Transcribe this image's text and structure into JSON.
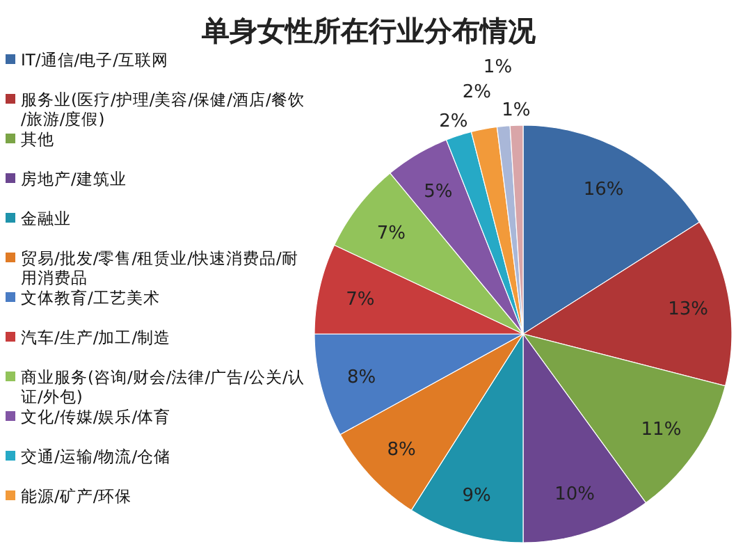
{
  "chart_data": {
    "type": "pie",
    "title": "单身女性所在行业分布情况",
    "categories": [
      "IT/通信/电子/互联网",
      "服务业(医疗/护理/美容/保健/酒店/餐饮/旅游/度假)",
      "其他",
      "房地产/建筑业",
      "金融业",
      "贸易/批发/零售/租赁业/快速消费品/耐用消费品",
      "文体教育/工艺美术",
      "汽车/生产/加工/制造",
      "商业服务(咨询/财会/法律/广告/公关/认证/外包)",
      "文化/传媒/娱乐/体育",
      "交通/运输/物流/仓储",
      "能源/矿产/环保",
      null,
      null
    ],
    "values": [
      16,
      13,
      11,
      10,
      9,
      8,
      8,
      7,
      7,
      5,
      2,
      2,
      1,
      1
    ],
    "colors": [
      "#3b6aa4",
      "#b03636",
      "#7ba446",
      "#6b4690",
      "#1f93ab",
      "#e07b25",
      "#4a7cc4",
      "#c83c3c",
      "#92c35a",
      "#8256a5",
      "#26a9c6",
      "#f29a3a",
      "#a9b7d8",
      "#d9a5a8"
    ],
    "value_labels": [
      "16%",
      "13%",
      "11%",
      "10%",
      "9%",
      "8%",
      "8%",
      "7%",
      "7%",
      "5%",
      "2%",
      "2%",
      "1%",
      "1%"
    ],
    "legend": "left"
  }
}
